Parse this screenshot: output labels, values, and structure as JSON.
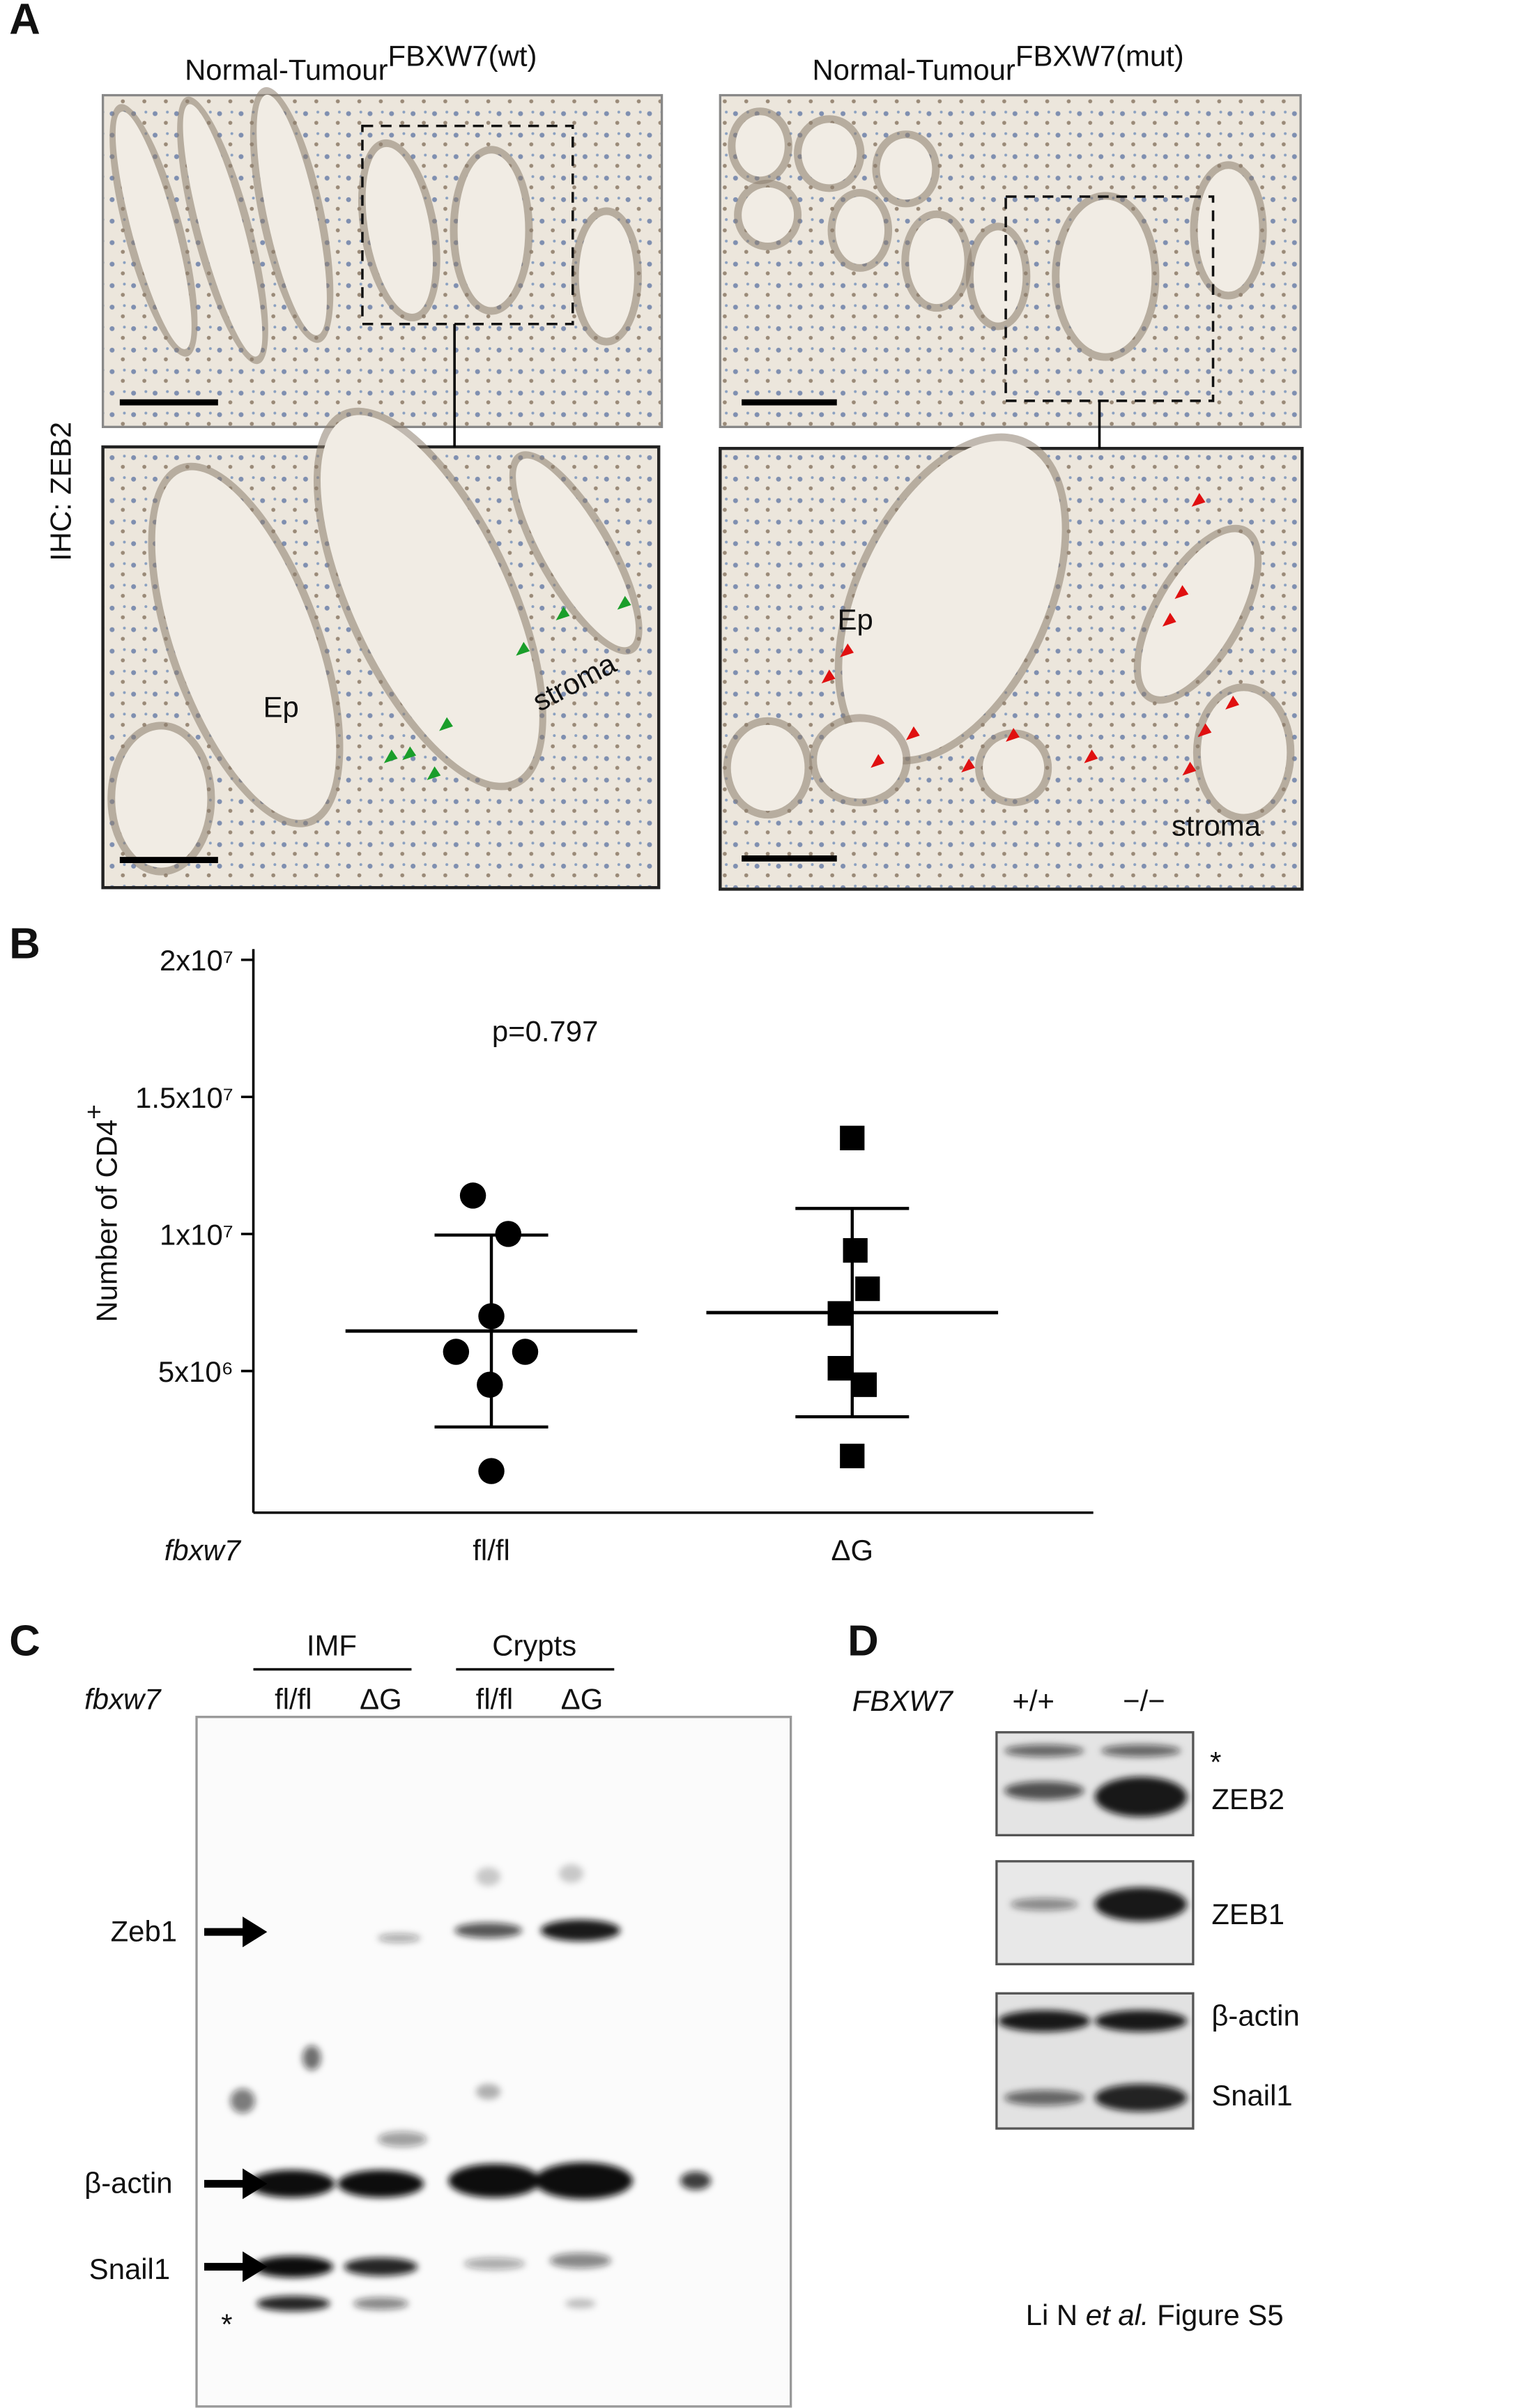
{
  "panel_a": {
    "label": "A",
    "ylabel": "IHC: ZEB2",
    "left": {
      "title": "Normal-Tumour",
      "sup": "FBXW7(wt)",
      "ep": "Ep",
      "stroma": "stroma"
    },
    "right": {
      "title": "Normal-Tumour",
      "sup": "FBXW7(mut)",
      "ep": "Ep",
      "stroma": "stroma"
    }
  },
  "chart_data": {
    "type": "scatter",
    "panel_label": "B",
    "ylabel": "Number of CD4",
    "ylabel_sup": "+",
    "annotation": "p=0.797",
    "xlabel": "fbxw7",
    "categories": [
      "fl/fl",
      "ΔG"
    ],
    "series": [
      {
        "marker": "circle",
        "color": "#000000",
        "values": [
          11400000,
          10000000,
          7000000,
          5700000,
          5700000,
          4500000,
          1350000
        ],
        "mean": 6460000,
        "sd": 3500000
      },
      {
        "marker": "square",
        "color": "#000000",
        "values": [
          13500000,
          9400000,
          8000000,
          7100000,
          5100000,
          4500000,
          1900000
        ],
        "mean": 7130000,
        "sd": 3800000
      }
    ],
    "ylim": [
      0,
      20000000
    ],
    "yticks": [
      {
        "value": 5000000,
        "label": "5x10⁶"
      },
      {
        "value": 10000000,
        "label": "1x10⁷"
      },
      {
        "value": 15000000,
        "label": "1.5x10⁷"
      },
      {
        "value": 20000000,
        "label": "2x10⁷"
      }
    ]
  },
  "panel_c": {
    "label": "C",
    "group1": "IMF",
    "group2": "Crypts",
    "genotype": "fbxw7",
    "lanes": [
      "fl/fl",
      "ΔG",
      "fl/fl",
      "ΔG"
    ],
    "bands": [
      "Zeb1",
      "β-actin",
      "Snail1"
    ],
    "asterisk": "*"
  },
  "panel_d": {
    "label": "D",
    "genotype": "FBXW7",
    "lanes": [
      "+/+",
      "−/−"
    ],
    "asterisk": "*",
    "bands": [
      "ZEB2",
      "ZEB1",
      "β-actin",
      "Snail1"
    ]
  },
  "footer": {
    "author": "Li N",
    "etal": "et al.",
    "figure": "Figure S5"
  }
}
